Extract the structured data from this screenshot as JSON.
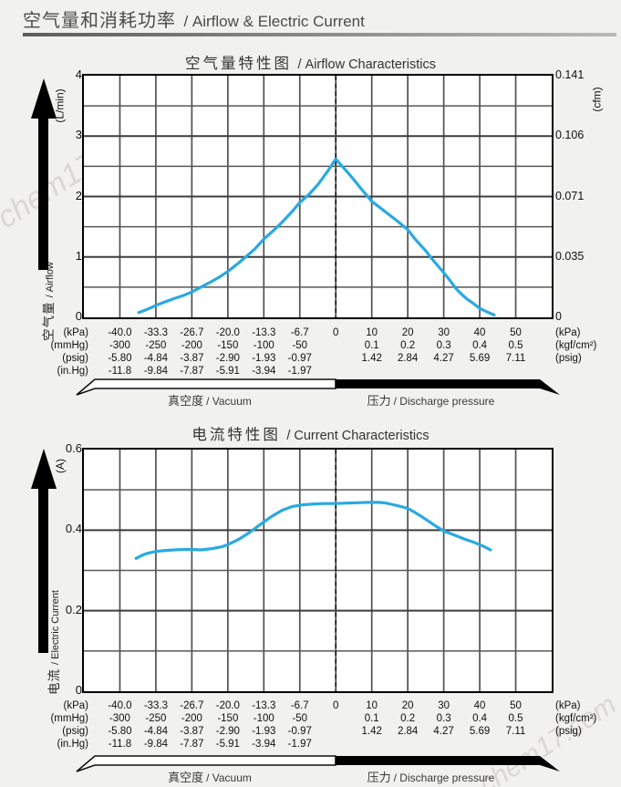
{
  "header": {
    "title_cn": "空气量和消耗功率",
    "title_en": "/ Airflow & Electric Current"
  },
  "watermark": "chem17.com",
  "x_axis": {
    "left_units": [
      "(kPa)",
      "(mmHg)",
      "(psig)",
      "(in.Hg)"
    ],
    "right_units": [
      "(kPa)",
      "(kgf/cm²)",
      "(psig)"
    ],
    "vacuum_rows": [
      [
        "-40.0",
        "-33.3",
        "-26.7",
        "-20.0",
        "-13.3",
        "-6.7"
      ],
      [
        "-300",
        "-250",
        "-200",
        "-150",
        "-100",
        "-50"
      ],
      [
        "-5.80",
        "-4.84",
        "-3.87",
        "-2.90",
        "-1.93",
        "-0.97"
      ],
      [
        "-11.8",
        "-9.84",
        "-7.87",
        "-5.91",
        "-3.94",
        "-1.97"
      ]
    ],
    "zero_label": "0",
    "pressure_rows": [
      [
        "10",
        "20",
        "30",
        "40",
        "50"
      ],
      [
        "0.1",
        "0.2",
        "0.3",
        "0.4",
        "0.5"
      ],
      [
        "1.42",
        "2.84",
        "4.27",
        "5.69",
        "7.11"
      ]
    ],
    "vacuum_label_cn": "真空度",
    "vacuum_label_en": "/ Vacuum",
    "pressure_label_cn": "压力",
    "pressure_label_en": "/ Discharge pressure",
    "x_range_kpa": [
      -46.7,
      60
    ]
  },
  "chart_data": [
    {
      "type": "line",
      "title_cn": "空气量特性图",
      "title_en": "/ Airflow Characteristics",
      "y_axis": {
        "label_cn": "空气量",
        "label_en": "/ Airflow",
        "unit": "(L/min)",
        "max": 4,
        "grid_step": 0.5,
        "ticks": [
          "4",
          "3",
          "2",
          "1",
          "0"
        ],
        "tick_values": [
          4,
          3,
          2,
          1,
          0
        ]
      },
      "y2_axis": {
        "unit": "(cfm)",
        "ticks": [
          "0.141",
          "0.106",
          "0.071",
          "0.035",
          "0"
        ],
        "tick_values": [
          4,
          3,
          2,
          1,
          0
        ]
      },
      "series": [
        {
          "name": "airflow",
          "color": "#29a9e1",
          "points": [
            [
              -36.5,
              0.08
            ],
            [
              -35,
              0.13
            ],
            [
              -33.3,
              0.2
            ],
            [
              -31.5,
              0.26
            ],
            [
              -30,
              0.31
            ],
            [
              -28,
              0.37
            ],
            [
              -26.7,
              0.42
            ],
            [
              -25,
              0.5
            ],
            [
              -23.3,
              0.58
            ],
            [
              -21.5,
              0.67
            ],
            [
              -20,
              0.76
            ],
            [
              -18,
              0.9
            ],
            [
              -16.7,
              1.0
            ],
            [
              -15,
              1.13
            ],
            [
              -13.3,
              1.3
            ],
            [
              -11.5,
              1.44
            ],
            [
              -10,
              1.57
            ],
            [
              -8,
              1.76
            ],
            [
              -6.7,
              1.9
            ],
            [
              -5,
              2.03
            ],
            [
              -3.3,
              2.2
            ],
            [
              -1.5,
              2.42
            ],
            [
              0,
              2.62
            ],
            [
              1.5,
              2.52
            ],
            [
              3,
              2.42
            ],
            [
              5,
              2.28
            ],
            [
              7,
              2.13
            ],
            [
              10,
              1.92
            ],
            [
              12,
              1.83
            ],
            [
              15,
              1.69
            ],
            [
              17,
              1.6
            ],
            [
              20,
              1.45
            ],
            [
              22,
              1.3
            ],
            [
              25,
              1.1
            ],
            [
              27,
              0.95
            ],
            [
              30,
              0.74
            ],
            [
              32,
              0.59
            ],
            [
              33.5,
              0.47
            ],
            [
              35,
              0.38
            ],
            [
              36.5,
              0.3
            ],
            [
              38,
              0.24
            ],
            [
              40,
              0.15
            ],
            [
              42,
              0.09
            ],
            [
              44,
              0.04
            ]
          ]
        }
      ]
    },
    {
      "type": "line",
      "title_cn": "电流特性图",
      "title_en": "/ Current Characteristics",
      "y_axis": {
        "label_cn": "电流",
        "label_en": "/ Electric Current",
        "unit": "(A)",
        "max": 0.6,
        "grid_step": 0.1,
        "ticks": [
          "0.6",
          "0.4",
          "0.2",
          "0"
        ],
        "tick_values": [
          0.6,
          0.4,
          0.2,
          0
        ]
      },
      "series": [
        {
          "name": "current",
          "color": "#29a9e1",
          "points": [
            [
              -37,
              0.33
            ],
            [
              -36,
              0.337
            ],
            [
              -35,
              0.342
            ],
            [
              -34,
              0.345
            ],
            [
              -33.3,
              0.347
            ],
            [
              -32,
              0.349
            ],
            [
              -30,
              0.351
            ],
            [
              -28,
              0.352
            ],
            [
              -26.7,
              0.352
            ],
            [
              -25,
              0.351
            ],
            [
              -23,
              0.354
            ],
            [
              -21,
              0.359
            ],
            [
              -20,
              0.364
            ],
            [
              -18,
              0.377
            ],
            [
              -16,
              0.394
            ],
            [
              -14,
              0.414
            ],
            [
              -12,
              0.433
            ],
            [
              -10,
              0.449
            ],
            [
              -8,
              0.459
            ],
            [
              -6,
              0.463
            ],
            [
              -4,
              0.465
            ],
            [
              -2,
              0.466
            ],
            [
              0,
              0.466
            ],
            [
              3,
              0.467
            ],
            [
              6,
              0.468
            ],
            [
              9,
              0.469
            ],
            [
              12,
              0.469
            ],
            [
              14,
              0.467
            ],
            [
              16,
              0.463
            ],
            [
              18,
              0.459
            ],
            [
              20,
              0.454
            ],
            [
              22,
              0.444
            ],
            [
              24,
              0.433
            ],
            [
              26,
              0.421
            ],
            [
              28,
              0.409
            ],
            [
              30,
              0.398
            ],
            [
              32,
              0.391
            ],
            [
              34,
              0.384
            ],
            [
              36,
              0.377
            ],
            [
              38,
              0.371
            ],
            [
              40,
              0.364
            ],
            [
              41.5,
              0.358
            ],
            [
              43,
              0.351
            ]
          ]
        }
      ]
    }
  ]
}
